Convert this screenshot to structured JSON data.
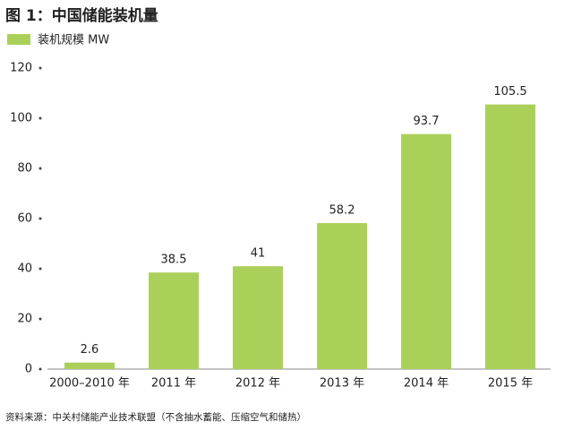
{
  "chart_data": {
    "type": "bar",
    "title": "图 1：中国储能装机量",
    "legend": "装机规模 MW",
    "categories": [
      "2000–2010 年",
      "2011 年",
      "2012 年",
      "2013 年",
      "2014 年",
      "2015 年"
    ],
    "values": [
      2.6,
      38.5,
      41,
      58.2,
      93.7,
      105.5
    ],
    "color": "#abd05a",
    "ylim": [
      0,
      120
    ],
    "yticks": [
      0,
      20,
      40,
      60,
      80,
      100,
      120
    ],
    "grid": false,
    "source": "资料来源：中关村储能产业技术联盟（不含抽水蓄能、压缩空气和储热）"
  }
}
